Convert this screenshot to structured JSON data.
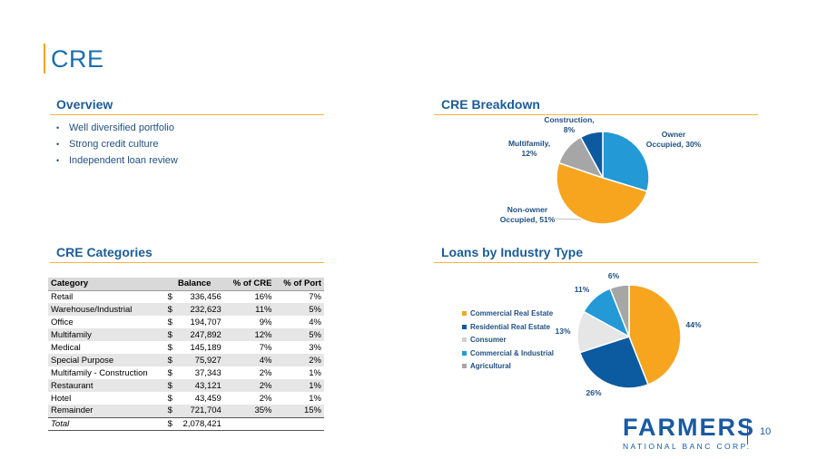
{
  "page": {
    "title": "CRE",
    "number": "10"
  },
  "overview": {
    "heading": "Overview",
    "bullets": [
      "Well diversified portfolio",
      "Strong credit culture",
      "Independent loan review"
    ]
  },
  "categories": {
    "heading": "CRE Categories",
    "columns": [
      "Category",
      "Balance",
      "% of CRE",
      "% of Port"
    ],
    "rows": [
      {
        "category": "Retail",
        "dollar": "$",
        "balance": "336,456",
        "pct_cre": "16%",
        "pct_port": "7%"
      },
      {
        "category": "Warehouse/Industrial",
        "dollar": "$",
        "balance": "232,623",
        "pct_cre": "11%",
        "pct_port": "5%"
      },
      {
        "category": "Office",
        "dollar": "$",
        "balance": "194,707",
        "pct_cre": "9%",
        "pct_port": "4%"
      },
      {
        "category": "Multifamily",
        "dollar": "$",
        "balance": "247,892",
        "pct_cre": "12%",
        "pct_port": "5%"
      },
      {
        "category": "Medical",
        "dollar": "$",
        "balance": "145,189",
        "pct_cre": "7%",
        "pct_port": "3%"
      },
      {
        "category": "Special Purpose",
        "dollar": "$",
        "balance": "75,927",
        "pct_cre": "4%",
        "pct_port": "2%"
      },
      {
        "category": "Multifamily - Construction",
        "dollar": "$",
        "balance": "37,343",
        "pct_cre": "2%",
        "pct_port": "1%"
      },
      {
        "category": "Restaurant",
        "dollar": "$",
        "balance": "43,121",
        "pct_cre": "2%",
        "pct_port": "1%"
      },
      {
        "category": "Hotel",
        "dollar": "$",
        "balance": "43,459",
        "pct_cre": "2%",
        "pct_port": "1%"
      },
      {
        "category": "Remainder",
        "dollar": "$",
        "balance": "721,704",
        "pct_cre": "35%",
        "pct_port": "15%"
      }
    ],
    "total": {
      "category": "Total",
      "dollar": "$",
      "balance": "2,078,421",
      "pct_cre": "",
      "pct_port": ""
    }
  },
  "breakdown": {
    "heading": "CRE Breakdown",
    "slices": [
      {
        "label_lines": [
          "Owner",
          "Occupied, 30%"
        ],
        "value": 30,
        "color": "#2399d6"
      },
      {
        "label_lines": [
          "Non-owner",
          "Occupied, 51%"
        ],
        "value": 51,
        "color": "#f7a51f"
      },
      {
        "label_lines": [
          "Multifamily,",
          "12%"
        ],
        "value": 12,
        "color": "#a6a6a6"
      },
      {
        "label_lines": [
          "Construction,",
          "8%"
        ],
        "value": 8,
        "color": "#0c5aa0"
      }
    ]
  },
  "industry": {
    "heading": "Loans by Industry Type",
    "slices": [
      {
        "name": "Commercial Real Estate",
        "value": 44,
        "label": "44%",
        "color": "#f7a51f"
      },
      {
        "name": "Residential Real Estate",
        "value": 26,
        "label": "26%",
        "color": "#0c5aa0"
      },
      {
        "name": "Consumer",
        "value": 13,
        "label": "13%",
        "color": "#e6e6e6"
      },
      {
        "name": "Commercial & Industrial",
        "value": 11,
        "label": "11%",
        "color": "#2399d6"
      },
      {
        "name": "Agricultural",
        "value": 6,
        "label": "6%",
        "color": "#a6a6a6"
      }
    ]
  },
  "logo": {
    "brand": "FARMERS",
    "sub": "NATIONAL BANC CORP."
  }
}
